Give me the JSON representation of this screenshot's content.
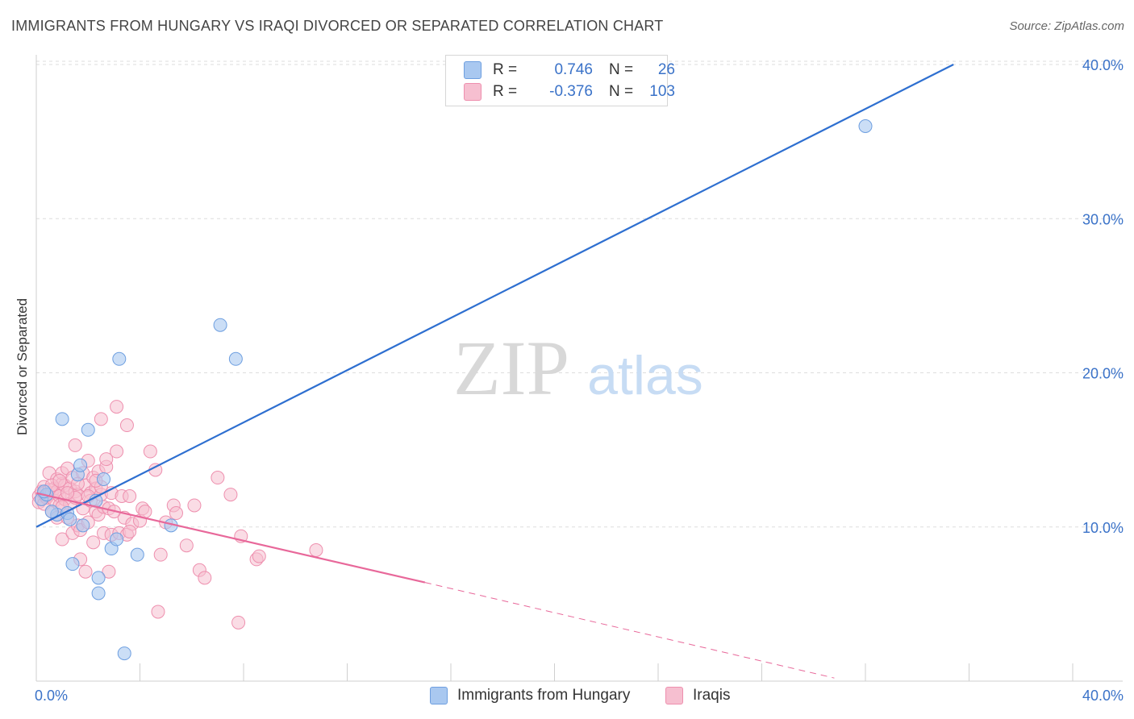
{
  "title": "IMMIGRANTS FROM HUNGARY VS IRAQI DIVORCED OR SEPARATED CORRELATION CHART",
  "source": "Source: ZipAtlas.com",
  "watermark": {
    "zip": "ZIP",
    "atlas": "atlas"
  },
  "colors": {
    "hungary_fill": "#a9c8f0",
    "hungary_stroke": "#6e9fe0",
    "hungary_line": "#2e6fd0",
    "iraqi_fill": "#f6bfd0",
    "iraqi_stroke": "#ee8fae",
    "iraqi_line": "#e8689a",
    "axis_text": "#3a72c8",
    "grid": "#dddddd"
  },
  "legend": {
    "rows": [
      {
        "r_label": "R =",
        "r_value": "0.746",
        "n_label": "N =",
        "n_value": "26"
      },
      {
        "r_label": "R =",
        "r_value": "-0.376",
        "n_label": "N =",
        "n_value": "103"
      }
    ]
  },
  "bottom_legend": {
    "hungary": "Immigrants from Hungary",
    "iraqi": "Iraqis"
  },
  "chart_data": {
    "type": "scatter",
    "title": "IMMIGRANTS FROM HUNGARY VS IRAQI DIVORCED OR SEPARATED CORRELATION CHART",
    "xlabel": "",
    "ylabel": "Divorced or Separated",
    "xlim": [
      0,
      40
    ],
    "ylim": [
      0,
      40
    ],
    "x_tick_labels": [
      "0.0%",
      "40.0%"
    ],
    "y_ticks": [
      10,
      20,
      30,
      40
    ],
    "y_tick_labels": [
      "10.0%",
      "20.0%",
      "30.0%",
      "40.0%"
    ],
    "series": [
      {
        "name": "Immigrants from Hungary",
        "r": 0.746,
        "n": 26,
        "trend": {
          "x": [
            0,
            35.4
          ],
          "y": [
            10.0,
            40.0
          ]
        },
        "points": [
          [
            0.2,
            11.8
          ],
          [
            0.4,
            12.1
          ],
          [
            0.8,
            10.8
          ],
          [
            1.0,
            17.0
          ],
          [
            1.2,
            10.9
          ],
          [
            1.3,
            10.5
          ],
          [
            1.4,
            7.6
          ],
          [
            1.6,
            13.4
          ],
          [
            1.7,
            14.0
          ],
          [
            1.8,
            10.1
          ],
          [
            2.0,
            16.3
          ],
          [
            2.3,
            11.7
          ],
          [
            2.4,
            6.7
          ],
          [
            2.4,
            5.7
          ],
          [
            2.6,
            13.1
          ],
          [
            2.9,
            8.6
          ],
          [
            3.1,
            9.2
          ],
          [
            3.2,
            20.9
          ],
          [
            3.4,
            1.8
          ],
          [
            3.9,
            8.2
          ],
          [
            5.2,
            10.1
          ],
          [
            7.1,
            23.1
          ],
          [
            7.7,
            20.9
          ],
          [
            32.0,
            36.0
          ],
          [
            0.6,
            11.0
          ],
          [
            0.3,
            12.3
          ]
        ]
      },
      {
        "name": "Iraqis",
        "r": -0.376,
        "n": 103,
        "trend_solid": {
          "x": [
            0,
            15.0
          ],
          "y": [
            12.2,
            6.4
          ]
        },
        "trend_dashed": {
          "x": [
            15.0,
            30.8
          ],
          "y": [
            6.4,
            0.2
          ]
        },
        "points": [
          [
            0.1,
            12.0
          ],
          [
            0.1,
            11.6
          ],
          [
            0.2,
            12.3
          ],
          [
            0.2,
            11.8
          ],
          [
            0.3,
            12.6
          ],
          [
            0.3,
            12.2
          ],
          [
            0.3,
            11.5
          ],
          [
            0.4,
            12.0
          ],
          [
            0.4,
            11.9
          ],
          [
            0.5,
            12.4
          ],
          [
            0.5,
            12.1
          ],
          [
            0.5,
            13.5
          ],
          [
            0.6,
            11.0
          ],
          [
            0.6,
            12.2
          ],
          [
            0.7,
            11.7
          ],
          [
            0.7,
            12.5
          ],
          [
            0.8,
            12.3
          ],
          [
            0.8,
            13.1
          ],
          [
            0.8,
            10.6
          ],
          [
            0.9,
            12.0
          ],
          [
            0.9,
            11.4
          ],
          [
            1.0,
            12.8
          ],
          [
            1.0,
            13.5
          ],
          [
            1.0,
            9.2
          ],
          [
            1.1,
            11.8
          ],
          [
            1.1,
            12.7
          ],
          [
            1.2,
            13.8
          ],
          [
            1.2,
            10.6
          ],
          [
            1.3,
            11.5
          ],
          [
            1.3,
            12.5
          ],
          [
            1.4,
            13.2
          ],
          [
            1.4,
            9.6
          ],
          [
            1.5,
            12.3
          ],
          [
            1.5,
            15.3
          ],
          [
            1.6,
            10.1
          ],
          [
            1.6,
            12.1
          ],
          [
            1.7,
            9.8
          ],
          [
            1.7,
            7.9
          ],
          [
            1.8,
            11.2
          ],
          [
            1.8,
            13.5
          ],
          [
            1.9,
            12.7
          ],
          [
            1.9,
            7.1
          ],
          [
            2.0,
            14.3
          ],
          [
            2.0,
            10.3
          ],
          [
            2.1,
            12.2
          ],
          [
            2.1,
            11.7
          ],
          [
            2.2,
            13.2
          ],
          [
            2.2,
            9.0
          ],
          [
            2.3,
            12.5
          ],
          [
            2.3,
            11.0
          ],
          [
            2.4,
            13.6
          ],
          [
            2.4,
            10.8
          ],
          [
            2.5,
            17.0
          ],
          [
            2.5,
            12.1
          ],
          [
            2.6,
            9.6
          ],
          [
            2.6,
            11.3
          ],
          [
            2.7,
            13.9
          ],
          [
            2.7,
            14.4
          ],
          [
            2.8,
            11.2
          ],
          [
            2.8,
            7.1
          ],
          [
            2.9,
            12.2
          ],
          [
            2.9,
            9.5
          ],
          [
            3.1,
            14.9
          ],
          [
            3.1,
            17.8
          ],
          [
            3.2,
            9.6
          ],
          [
            3.3,
            12.0
          ],
          [
            3.4,
            10.6
          ],
          [
            3.5,
            16.6
          ],
          [
            3.5,
            9.5
          ],
          [
            3.6,
            12.0
          ],
          [
            3.7,
            10.2
          ],
          [
            4.0,
            10.4
          ],
          [
            4.1,
            11.2
          ],
          [
            4.2,
            11.0
          ],
          [
            4.4,
            14.9
          ],
          [
            4.6,
            13.7
          ],
          [
            4.7,
            4.5
          ],
          [
            4.8,
            8.2
          ],
          [
            5.0,
            10.3
          ],
          [
            5.3,
            11.4
          ],
          [
            5.4,
            10.9
          ],
          [
            5.8,
            8.8
          ],
          [
            6.1,
            11.4
          ],
          [
            6.3,
            7.2
          ],
          [
            6.5,
            6.7
          ],
          [
            7.0,
            13.2
          ],
          [
            7.5,
            12.1
          ],
          [
            7.8,
            3.8
          ],
          [
            7.9,
            9.4
          ],
          [
            8.5,
            7.9
          ],
          [
            8.6,
            8.1
          ],
          [
            10.8,
            8.5
          ],
          [
            1.0,
            11.3
          ],
          [
            1.5,
            11.9
          ],
          [
            2.0,
            12.0
          ],
          [
            2.5,
            12.6
          ],
          [
            0.6,
            12.7
          ],
          [
            0.9,
            13.0
          ],
          [
            1.2,
            12.2
          ],
          [
            1.6,
            12.8
          ],
          [
            2.3,
            13.0
          ],
          [
            3.0,
            11.0
          ],
          [
            3.6,
            9.7
          ]
        ]
      }
    ]
  }
}
